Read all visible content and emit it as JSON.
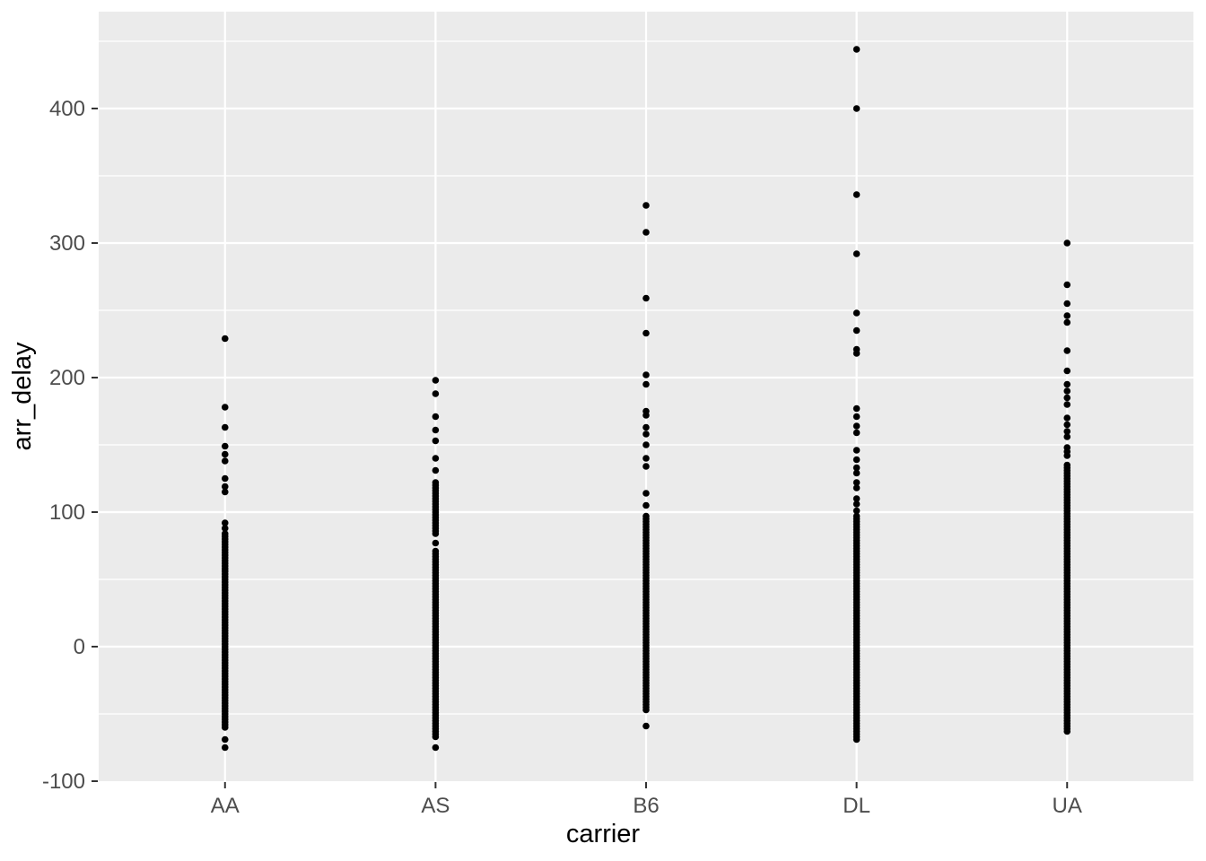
{
  "figure": {
    "background": "#FFFFFF",
    "panel_background": "#EBEBEB",
    "grid_color": "#FFFFFF",
    "point_color": "#000000",
    "tick_label_color": "#4D4D4D",
    "tick_mark_color": "#333333",
    "axis_title_color": "#000000"
  },
  "chart_data": {
    "type": "scatter",
    "title": "",
    "xlabel": "carrier",
    "ylabel": "arr_delay",
    "legend": "none",
    "grid": "major-and-minor",
    "categories": [
      "AA",
      "AS",
      "B6",
      "DL",
      "UA"
    ],
    "y_axis": {
      "ticks": [
        -100,
        0,
        100,
        200,
        300,
        400
      ],
      "tick_labels": [
        "-100",
        "0",
        "100",
        "200",
        "300",
        "400"
      ],
      "minor_ticks": [
        -50,
        50,
        150,
        250,
        350,
        450
      ],
      "range": [
        -100,
        472
      ]
    },
    "series": [
      {
        "name": "AA",
        "points": [
          229,
          178,
          163,
          149,
          143,
          138,
          125,
          119,
          115,
          92,
          88,
          -69,
          -75
        ],
        "dense_runs": [
          {
            "from": 84,
            "to": -60,
            "step": 2
          }
        ]
      },
      {
        "name": "AS",
        "points": [
          198,
          188,
          171,
          161,
          153,
          140,
          131,
          77,
          -75
        ],
        "dense_runs": [
          {
            "from": 122,
            "to": 83,
            "step": 2
          },
          {
            "from": 71,
            "to": -67,
            "step": 2
          }
        ]
      },
      {
        "name": "B6",
        "points": [
          328,
          308,
          259,
          233,
          202,
          195,
          175,
          172,
          163,
          158,
          150,
          140,
          134,
          114,
          105,
          -59
        ],
        "dense_runs": [
          {
            "from": 97,
            "to": -48,
            "step": 2
          }
        ]
      },
      {
        "name": "DL",
        "points": [
          444,
          400,
          336,
          292,
          248,
          235,
          221,
          218,
          177,
          171,
          164,
          159,
          146,
          139,
          133,
          129,
          122,
          118,
          110,
          106,
          101
        ],
        "dense_runs": [
          {
            "from": 97,
            "to": -70,
            "step": 2
          }
        ]
      },
      {
        "name": "UA",
        "points": [
          300,
          269,
          255,
          246,
          241,
          220,
          205,
          195,
          190,
          185,
          180,
          170,
          165,
          160,
          156,
          148,
          145,
          142
        ],
        "dense_runs": [
          {
            "from": 135,
            "to": 117,
            "step": 2
          },
          {
            "from": 115,
            "to": -63,
            "step": 2
          }
        ]
      }
    ]
  }
}
